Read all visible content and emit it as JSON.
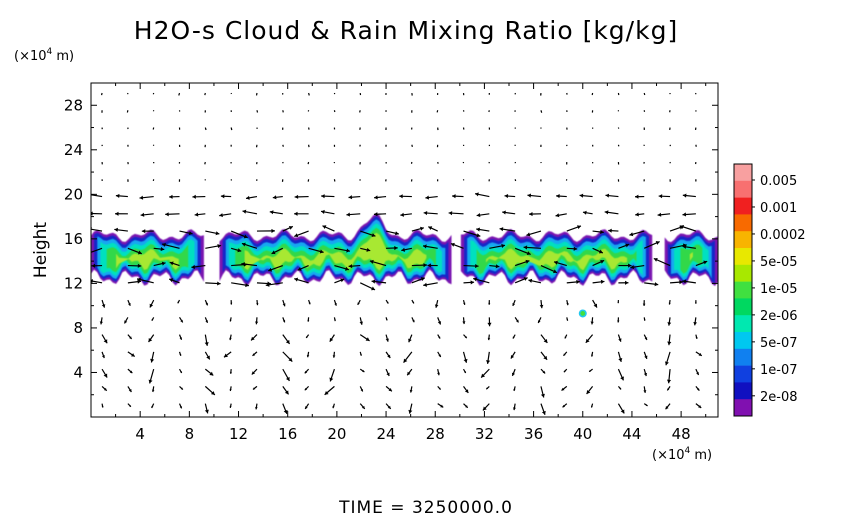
{
  "chart_data": {
    "type": "heatmap",
    "title": "H2O-s Cloud & Rain Mixing Ratio [kg/kg]",
    "ylabel": "Height",
    "y_unit": {
      "prefix": "(×10",
      "exp": "4",
      "suffix": " m)"
    },
    "x_unit": {
      "prefix": "(×10",
      "exp": "4",
      "suffix": " m)"
    },
    "xlim": [
      0,
      51
    ],
    "ylim": [
      0,
      30
    ],
    "x_ticks": [
      4,
      8,
      12,
      16,
      20,
      24,
      28,
      32,
      36,
      40,
      44,
      48
    ],
    "y_ticks": [
      4,
      8,
      12,
      16,
      20,
      24,
      28
    ],
    "time_label": "TIME = 3250000.0",
    "colorbar": {
      "labels": [
        "0.005",
        "0.001",
        "0.0002",
        "5e-05",
        "1e-05",
        "2e-06",
        "5e-07",
        "1e-07",
        "2e-08"
      ],
      "colors": [
        "#f8a0a0",
        "#f87070",
        "#f02020",
        "#f86a00",
        "#f8b400",
        "#e8e800",
        "#a8e800",
        "#40e040",
        "#00d860",
        "#00e8b0",
        "#00c8f0",
        "#1080f0",
        "#1040e0",
        "#1010c0",
        "#8010b0"
      ]
    },
    "cloud_layer": {
      "altitude_range": [
        12,
        16.5
      ],
      "x_extent": [
        0,
        51
      ],
      "gaps_x": [
        [
          9.2,
          10.3
        ],
        [
          29.5,
          30.0
        ],
        [
          45.8,
          46.5
        ]
      ],
      "peak_x": 23,
      "peak_altitude": 18
    },
    "isolated_spot": {
      "x": 40,
      "y": 9.3
    },
    "wind_vectors": "present"
  }
}
